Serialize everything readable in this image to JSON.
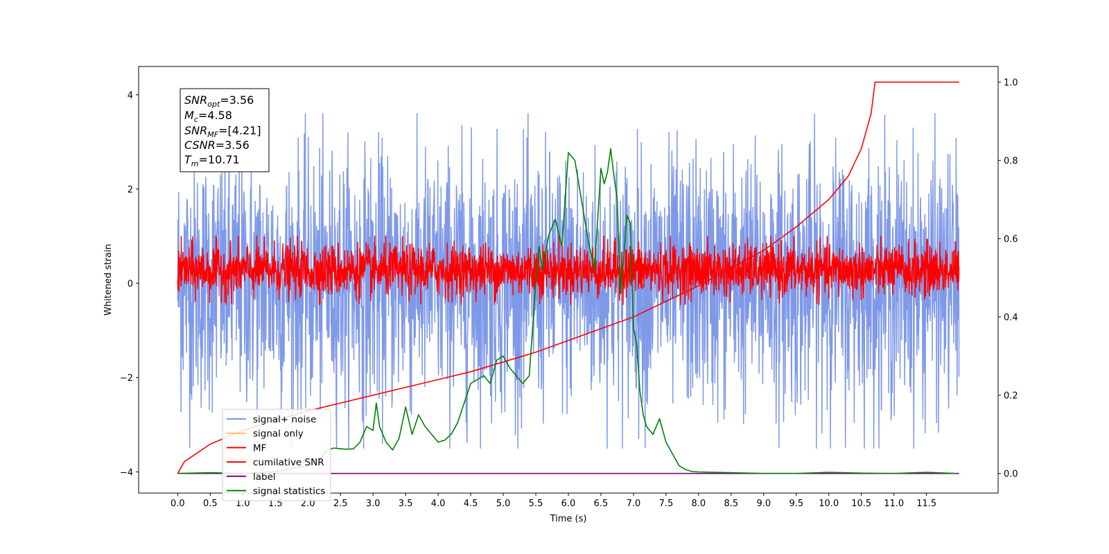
{
  "chart_data": {
    "type": "line",
    "xlabel": "Time (s)",
    "ylabel": "Whitened strain",
    "xlim": [
      -0.6,
      12.6
    ],
    "ylim": [
      -4.45,
      4.6
    ],
    "y2lim": [
      -0.05,
      1.04
    ],
    "x_ticks": [
      "0.0",
      "0.5",
      "1.0",
      "1.5",
      "2.0",
      "2.5",
      "3.0",
      "3.5",
      "4.0",
      "4.5",
      "5.0",
      "5.5",
      "6.0",
      "6.5",
      "7.0",
      "7.5",
      "8.0",
      "8.5",
      "9.0",
      "9.5",
      "10.0",
      "10.5",
      "11.0",
      "11.5"
    ],
    "y_ticks": [
      "−4",
      "−2",
      "0",
      "2",
      "4"
    ],
    "y2_ticks": [
      "0.0",
      "0.2",
      "0.4",
      "0.6",
      "0.8",
      "1.0"
    ],
    "info_box": {
      "snr_opt": {
        "main": "SNR",
        "sub": "opt",
        "value": "=3.56"
      },
      "mc": {
        "main": "M",
        "sub": "c",
        "value": "=4.58"
      },
      "snr_mf": {
        "main": "SNR",
        "sub": "MF",
        "value": "=[4.21]"
      },
      "csnr": {
        "main": "CSNR",
        "value": "=3.56"
      },
      "tm": {
        "main": "T",
        "sub": "m",
        "value": "=10.71"
      }
    },
    "legend_position": "lower-left",
    "series": [
      {
        "name": "signal+ noise",
        "color": "#7893e8",
        "axis": "left",
        "kind": "noise",
        "amplitude_envelope": [
          -3.5,
          3.6
        ],
        "x_range": [
          0.0,
          12.0
        ]
      },
      {
        "name": "signal only",
        "color": "#ffbf60",
        "axis": "left",
        "kind": "hidden"
      },
      {
        "name": "MF",
        "color": "#ff0000",
        "axis": "left",
        "kind": "noise",
        "amplitude_envelope": [
          -0.45,
          1.0
        ],
        "x_range": [
          0.0,
          12.0
        ]
      },
      {
        "name": "cumilative SNR",
        "color": "#ff0000",
        "axis": "right",
        "x": [
          0.0,
          0.1,
          0.5,
          1.0,
          1.5,
          2.0,
          2.5,
          3.0,
          3.5,
          4.0,
          4.5,
          5.0,
          5.5,
          6.0,
          6.5,
          7.0,
          7.5,
          8.0,
          8.5,
          9.0,
          9.5,
          10.0,
          10.3,
          10.5,
          10.65,
          10.71,
          12.0
        ],
        "y": [
          0.0,
          0.03,
          0.075,
          0.11,
          0.135,
          0.16,
          0.18,
          0.2,
          0.22,
          0.24,
          0.26,
          0.285,
          0.31,
          0.34,
          0.37,
          0.4,
          0.44,
          0.48,
          0.525,
          0.57,
          0.63,
          0.7,
          0.76,
          0.83,
          0.92,
          1.0,
          1.0
        ]
      },
      {
        "name": "label",
        "color": "#800080",
        "axis": "right",
        "x": [
          0.0,
          12.0
        ],
        "y": [
          0.0,
          0.0
        ]
      },
      {
        "name": "signal statistics",
        "color": "#008000",
        "axis": "right",
        "x": [
          0.0,
          0.5,
          1.0,
          1.5,
          2.0,
          2.1,
          2.2,
          2.3,
          2.4,
          2.5,
          2.6,
          2.7,
          2.8,
          2.9,
          3.0,
          3.05,
          3.1,
          3.2,
          3.3,
          3.4,
          3.5,
          3.6,
          3.7,
          3.8,
          3.9,
          4.0,
          4.1,
          4.2,
          4.3,
          4.4,
          4.5,
          4.6,
          4.7,
          4.8,
          4.9,
          5.0,
          5.1,
          5.2,
          5.3,
          5.4,
          5.5,
          5.55,
          5.6,
          5.7,
          5.8,
          5.9,
          6.0,
          6.1,
          6.2,
          6.3,
          6.4,
          6.5,
          6.55,
          6.6,
          6.65,
          6.7,
          6.75,
          6.8,
          6.85,
          6.9,
          6.95,
          7.0,
          7.05,
          7.1,
          7.15,
          7.2,
          7.3,
          7.4,
          7.5,
          7.6,
          7.7,
          7.8,
          7.9,
          8.0,
          8.5,
          9.0,
          9.5,
          10.0,
          10.5,
          11.0,
          11.5,
          11.95
        ],
        "y": [
          0.0,
          0.002,
          0.0,
          0.005,
          0.02,
          0.03,
          0.04,
          0.06,
          0.065,
          0.063,
          0.062,
          0.063,
          0.08,
          0.12,
          0.11,
          0.18,
          0.12,
          0.08,
          0.06,
          0.09,
          0.17,
          0.1,
          0.15,
          0.12,
          0.1,
          0.08,
          0.085,
          0.1,
          0.13,
          0.18,
          0.23,
          0.24,
          0.25,
          0.23,
          0.29,
          0.3,
          0.27,
          0.25,
          0.23,
          0.25,
          0.49,
          0.58,
          0.52,
          0.61,
          0.65,
          0.58,
          0.82,
          0.8,
          0.7,
          0.6,
          0.52,
          0.78,
          0.74,
          0.77,
          0.83,
          0.76,
          0.7,
          0.46,
          0.55,
          0.66,
          0.64,
          0.37,
          0.33,
          0.21,
          0.15,
          0.12,
          0.1,
          0.14,
          0.08,
          0.05,
          0.02,
          0.01,
          0.005,
          0.004,
          0.002,
          0.0,
          0.0,
          0.003,
          0.001,
          0.0,
          0.003,
          0.0
        ]
      }
    ]
  }
}
